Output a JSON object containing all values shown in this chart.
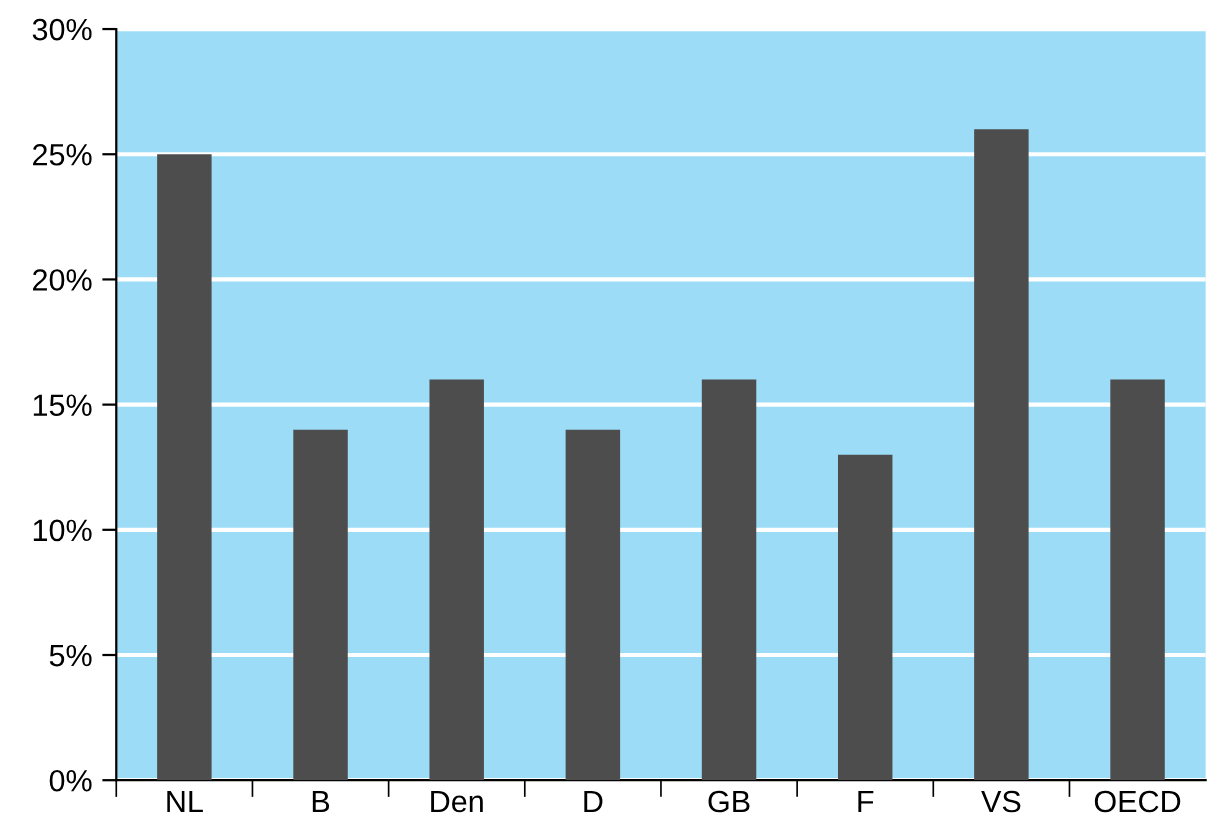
{
  "chart_data": {
    "type": "bar",
    "categories": [
      "NL",
      "B",
      "Den",
      "D",
      "GB",
      "F",
      "VS",
      "OECD"
    ],
    "values": [
      25,
      14,
      16,
      14,
      16,
      13,
      26,
      16
    ],
    "color": "#4d4d4d",
    "ylim": [
      0,
      30
    ],
    "yticks": [
      {
        "value": 0,
        "label": "0%"
      },
      {
        "value": 5,
        "label": "5%"
      },
      {
        "value": 10,
        "label": "10%"
      },
      {
        "value": 15,
        "label": "15%"
      },
      {
        "value": 20,
        "label": "20%"
      },
      {
        "value": 25,
        "label": "25%"
      },
      {
        "value": 30,
        "label": "30%"
      }
    ],
    "grid": "y",
    "legend": false
  }
}
